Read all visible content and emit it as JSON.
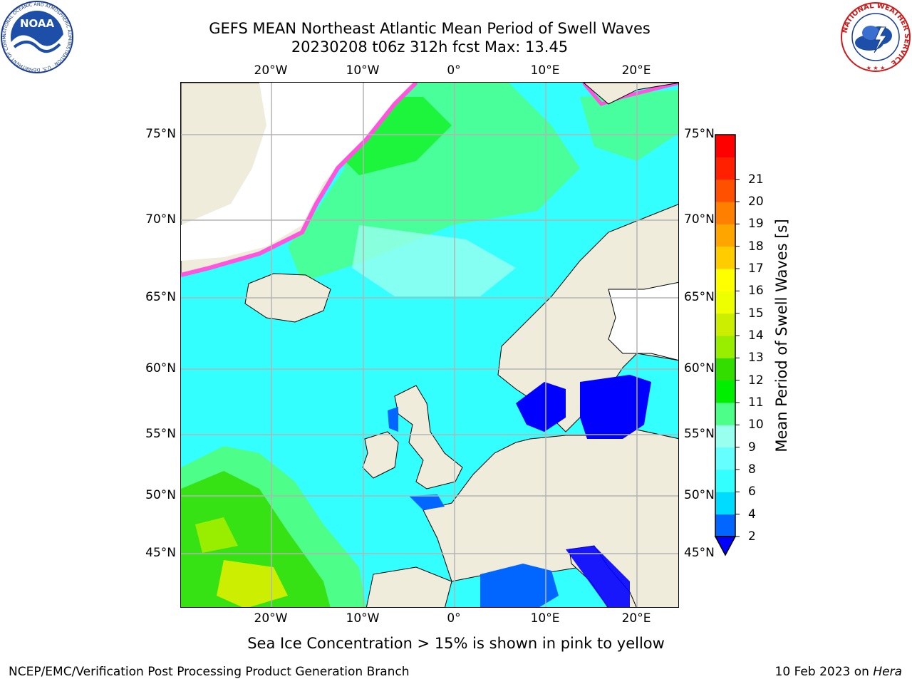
{
  "header": {
    "title_line1": "GEFS MEAN Northeast Atlantic Mean Period of Swell Waves",
    "title_line2": "20230208 t06z 312h fcst   Max: 13.45"
  },
  "axes": {
    "lon_labels": [
      "20°W",
      "10°W",
      "0°",
      "10°E",
      "20°E"
    ],
    "lat_labels": [
      "75°N",
      "70°N",
      "65°N",
      "60°N",
      "55°N",
      "50°N",
      "45°N"
    ]
  },
  "colorbar": {
    "label": "Mean Period of Swell Waves [s]",
    "ticks": [
      "2",
      "4",
      "6",
      "8",
      "9",
      "10",
      "11",
      "12",
      "13",
      "14",
      "15",
      "16",
      "17",
      "18",
      "19",
      "20",
      "21"
    ],
    "colors": [
      "#0066ff",
      "#00dcff",
      "#33ffff",
      "#66ffff",
      "#99ffee",
      "#4dff88",
      "#00ee00",
      "#33dd00",
      "#99ee00",
      "#ccee00",
      "#eeff00",
      "#ffff00",
      "#ffcc00",
      "#ffa500",
      "#ff8000",
      "#ff5000",
      "#ff2000",
      "#ff0000"
    ],
    "extend_color": "#0000ff"
  },
  "footnote": "Sea Ice Concentration > 15% is shown in pink to yellow",
  "credit_left": "NCEP/EMC/Verification Post Processing Product Generation Branch",
  "credit_right_date": "10 Feb 2023 on ",
  "credit_right_host": "Hera",
  "logos": {
    "left_name": "NOAA",
    "left_ring_text": "NATIONAL OCEANIC AND ATMOSPHERIC ADMINISTRATION · U.S. DEPARTMENT OF COMMERCE",
    "right_ring_text": "NATIONAL WEATHER SERVICE"
  }
}
